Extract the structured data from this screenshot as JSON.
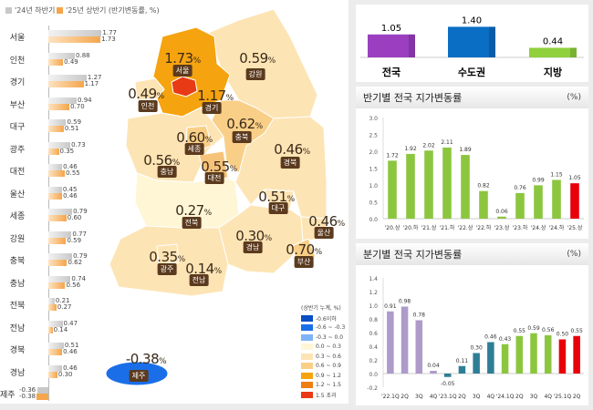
{
  "legend": {
    "series_a": "'24년 하반기",
    "series_b": "'25년 상반기 (반기변동률, %)",
    "color_a": "#c8c8c8",
    "color_b": "#f5a54a"
  },
  "regions": [
    {
      "name": "서울",
      "h2_24": 1.77,
      "h1_25": 1.73
    },
    {
      "name": "인천",
      "h2_24": 0.88,
      "h1_25": 0.49
    },
    {
      "name": "경기",
      "h2_24": 1.27,
      "h1_25": 1.17
    },
    {
      "name": "부산",
      "h2_24": 0.94,
      "h1_25": 0.7
    },
    {
      "name": "대구",
      "h2_24": 0.59,
      "h1_25": 0.51
    },
    {
      "name": "광주",
      "h2_24": 0.73,
      "h1_25": 0.35
    },
    {
      "name": "대전",
      "h2_24": 0.46,
      "h1_25": 0.55
    },
    {
      "name": "울산",
      "h2_24": 0.45,
      "h1_25": 0.46
    },
    {
      "name": "세종",
      "h2_24": 0.79,
      "h1_25": 0.6
    },
    {
      "name": "강원",
      "h2_24": 0.77,
      "h1_25": 0.59
    },
    {
      "name": "충북",
      "h2_24": 0.79,
      "h1_25": 0.62
    },
    {
      "name": "충남",
      "h2_24": 0.74,
      "h1_25": 0.56
    },
    {
      "name": "전북",
      "h2_24": 0.21,
      "h1_25": 0.27
    },
    {
      "name": "전남",
      "h2_24": 0.47,
      "h1_25": 0.14
    },
    {
      "name": "경북",
      "h2_24": 0.51,
      "h1_25": 0.46
    },
    {
      "name": "경남",
      "h2_24": 0.46,
      "h1_25": 0.3
    },
    {
      "name": "제주",
      "h2_24": -0.36,
      "h1_25": -0.38
    }
  ],
  "map": {
    "labels": {
      "서울": "1.73",
      "인천": "0.49",
      "경기": "1.17",
      "강원": "0.59",
      "충북": "0.62",
      "세종": "0.60",
      "충남": "0.56",
      "대전": "0.55",
      "경북": "0.46",
      "대구": "0.51",
      "울산": "0.46",
      "전북": "0.27",
      "경남": "0.30",
      "부산": "0.70",
      "광주": "0.35",
      "전남": "0.14",
      "제주": "-0.38"
    },
    "unit": "%",
    "legend_title": "(상반기 누계, %)",
    "legend": [
      {
        "label": "-0.6이하",
        "color": "#0a4fc4"
      },
      {
        "label": "-0.6 ~ -0.3",
        "color": "#1a6fe8"
      },
      {
        "label": "-0.3 ~ 0.0",
        "color": "#7fb3f5"
      },
      {
        "label": "0.0 ~ 0.3",
        "color": "#fff6d6"
      },
      {
        "label": "0.3 ~ 0.6",
        "color": "#fde4b4"
      },
      {
        "label": "0.6 ~ 0.9",
        "color": "#f9cf88"
      },
      {
        "label": "0.9 ~ 1.2",
        "color": "#f5a30f"
      },
      {
        "label": "1.2 ~ 1.5",
        "color": "#ee7d12"
      },
      {
        "label": "1.5 초과",
        "color": "#e83a14"
      }
    ]
  },
  "chart_data": [
    {
      "type": "bar",
      "categories": [
        "전국",
        "수도권",
        "지방"
      ],
      "values": [
        1.05,
        1.4,
        0.44
      ],
      "colors": [
        "#9b3fc0",
        "#0a6ec4",
        "#8fd03c"
      ]
    },
    {
      "type": "bar",
      "title": "반기별 전국 지가변동률",
      "unit": "(%)",
      "categories": [
        "'20.상",
        "'20.하",
        "'21.상",
        "'21.하",
        "'22.상",
        "'22.하",
        "'23.상",
        "'23.하",
        "'24.상",
        "'24.하",
        "'25.상"
      ],
      "values": [
        1.72,
        1.92,
        2.02,
        2.11,
        1.89,
        0.82,
        0.06,
        0.76,
        0.99,
        1.15,
        1.05
      ],
      "colors": [
        "#8cc63f",
        "#8cc63f",
        "#8cc63f",
        "#8cc63f",
        "#8cc63f",
        "#8cc63f",
        "#8cc63f",
        "#8cc63f",
        "#8cc63f",
        "#8cc63f",
        "#e8000b"
      ],
      "ylim": [
        0,
        3.0
      ],
      "yticks": [
        "0.0",
        "0.5",
        "1.0",
        "1.5",
        "2.0",
        "2.5",
        "3.0"
      ]
    },
    {
      "type": "bar",
      "title": "분기별 전국 지가변동률",
      "unit": "(%)",
      "categories": [
        "'22.1Q",
        "2Q",
        "3Q",
        "4Q",
        "'23.1Q",
        "2Q",
        "3Q",
        "4Q",
        "'24.1Q",
        "2Q",
        "3Q",
        "4Q",
        "'25.1Q",
        "2Q"
      ],
      "values": [
        0.91,
        0.98,
        0.78,
        0.04,
        -0.05,
        0.11,
        0.3,
        0.46,
        0.43,
        0.55,
        0.59,
        0.56,
        0.5,
        0.55
      ],
      "colors": [
        "#ae9bc9",
        "#ae9bc9",
        "#ae9bc9",
        "#ae9bc9",
        "#2e7f95",
        "#2e7f95",
        "#2e7f95",
        "#2e7f95",
        "#8cc63f",
        "#8cc63f",
        "#8cc63f",
        "#8cc63f",
        "#e8000b",
        "#e8000b"
      ],
      "ylim": [
        -0.2,
        1.4
      ],
      "yticks": [
        "-0.2",
        "0.0",
        "0.2",
        "0.4",
        "0.6",
        "0.8",
        "1.0",
        "1.2",
        "1.4"
      ]
    }
  ]
}
